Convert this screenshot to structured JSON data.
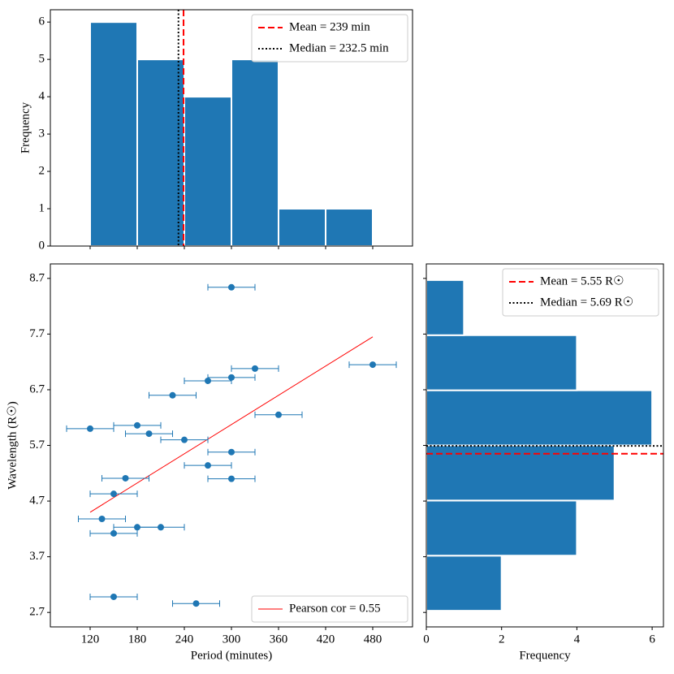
{
  "chart_data": [
    {
      "type": "histogram",
      "orientation": "vertical",
      "bins": [
        120,
        180,
        240,
        300,
        360,
        420,
        480
      ],
      "counts": [
        6,
        5,
        4,
        5,
        1,
        1
      ],
      "color": "#1f77b4",
      "xlim": [
        69.3,
        530.7
      ],
      "ylim": [
        0,
        6.33
      ],
      "xticks": [
        120,
        180,
        240,
        300,
        360,
        420,
        480
      ],
      "yticks": [
        0,
        1,
        2,
        3,
        4,
        5,
        6
      ],
      "ylabel": "Frequency",
      "legend": "upper right",
      "lines": [
        {
          "name": "Mean = 239 min",
          "value": 239,
          "color": "#ff0000",
          "style": "dashed"
        },
        {
          "name": "Median = 232.5 min",
          "value": 232.5,
          "color": "#000000",
          "style": "dotted"
        }
      ]
    },
    {
      "type": "scatter",
      "x": [
        300,
        480,
        330,
        300,
        270,
        225,
        360,
        180,
        120,
        195,
        240,
        300,
        270,
        165,
        300,
        150,
        135,
        180,
        210,
        150,
        150,
        255
      ],
      "values": [
        8.54,
        7.15,
        7.08,
        6.92,
        6.86,
        6.6,
        6.25,
        6.06,
        6.0,
        5.91,
        5.8,
        5.58,
        5.34,
        5.11,
        5.1,
        4.83,
        4.38,
        4.23,
        4.23,
        4.12,
        2.98,
        2.86
      ],
      "xerr": [
        30,
        30,
        30,
        30,
        30,
        30,
        30,
        30,
        30,
        30,
        30,
        30,
        30,
        30,
        30,
        30,
        30,
        30,
        30,
        30,
        30,
        30
      ],
      "color": "#1f77b4",
      "xlim": [
        69.3,
        530.7
      ],
      "ylim": [
        2.44,
        8.96
      ],
      "xticks": [
        120,
        180,
        240,
        300,
        360,
        420,
        480
      ],
      "yticks": [
        2.7,
        3.7,
        4.7,
        5.7,
        6.7,
        7.7,
        8.7
      ],
      "xlabel": "Period (minutes)",
      "ylabel": "Wavelength (R☉)",
      "legend": "lower right",
      "fit": {
        "name": "Pearson cor = 0.55",
        "color": "#ff0000",
        "x": [
          120,
          480
        ],
        "y": [
          4.5,
          7.65
        ]
      }
    },
    {
      "type": "histogram",
      "orientation": "horizontal",
      "bins": [
        2.73,
        3.72,
        4.71,
        5.7,
        6.69,
        7.68,
        8.67
      ],
      "counts": [
        2,
        4,
        5,
        6,
        4,
        1
      ],
      "color": "#1f77b4",
      "xlim": [
        0,
        6.3
      ],
      "ylim": [
        2.44,
        8.96
      ],
      "xticks": [
        0,
        2,
        4,
        6
      ],
      "yticks": [
        2.7,
        3.7,
        4.7,
        5.7,
        6.7,
        7.7,
        8.7
      ],
      "xlabel": "Frequency",
      "legend": "upper right",
      "lines": [
        {
          "name": "Mean = 5.55 R☉",
          "value": 5.55,
          "color": "#ff0000",
          "style": "dashed"
        },
        {
          "name": "Median = 5.69 R☉",
          "value": 5.69,
          "color": "#000000",
          "style": "dotted"
        }
      ]
    }
  ]
}
